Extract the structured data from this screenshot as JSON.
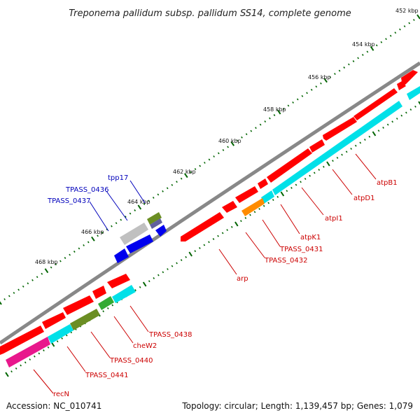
{
  "title": "Treponema pallidum subsp. pallidum SS14, complete genome",
  "accession": "Accession: NC_010741",
  "topology": "Topology: circular; Length: 1,139,457 bp; Genes: 1,079",
  "scale_labels": [
    "452 kbp",
    "454 kbp",
    "456 kbp",
    "458 kbp",
    "460 kbp",
    "462 kbp",
    "464 kbp",
    "466 kbp",
    "468 kbp"
  ],
  "gene_labels": [
    {
      "text": "atpB1",
      "color": "#cc0000"
    },
    {
      "text": "atpD1",
      "color": "#cc0000"
    },
    {
      "text": "atpI1",
      "color": "#cc0000"
    },
    {
      "text": "atpK1",
      "color": "#cc0000"
    },
    {
      "text": "TPASS_0431",
      "color": "#cc0000"
    },
    {
      "text": "TPASS_0432",
      "color": "#cc0000"
    },
    {
      "text": "arp",
      "color": "#cc0000"
    },
    {
      "text": "tpp17",
      "color": "#0000bb"
    },
    {
      "text": "TPASS_0436",
      "color": "#0000bb"
    },
    {
      "text": "TPASS_0437",
      "color": "#0000bb"
    },
    {
      "text": "TPASS_0438",
      "color": "#cc0000"
    },
    {
      "text": "cheW2",
      "color": "#cc0000"
    },
    {
      "text": "TPASS_0440",
      "color": "#cc0000"
    },
    {
      "text": "TPASS_0441",
      "color": "#cc0000"
    },
    {
      "text": "recN",
      "color": "#cc0000"
    }
  ],
  "colors": {
    "forward_gene": "#ff0000",
    "reverse_gene": "#0000ee",
    "backbone": "#888888",
    "cds_cyan": "#00e0e8",
    "cds_orange": "#ff8c00",
    "cds_olive": "#6b8e23",
    "cds_green": "#33aa33",
    "cds_magenta": "#e8188c",
    "cds_grey": "#c0c0c0",
    "tick_major": "#006400",
    "label_red": "#cc0000",
    "label_blue": "#0000bb"
  }
}
